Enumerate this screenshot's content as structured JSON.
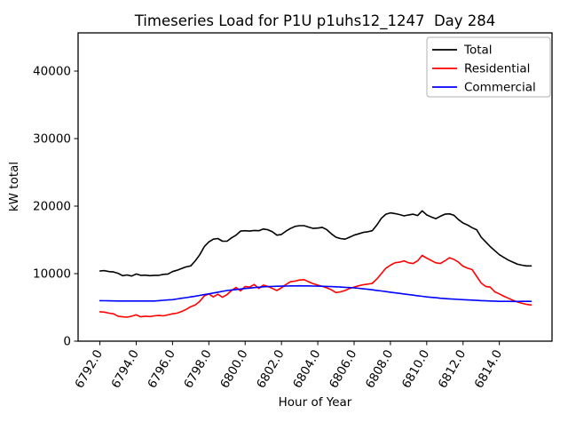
{
  "figure": {
    "title": "Timeseries Load for P1U p1uhs12_1247  Day 284",
    "xlabel": "Hour of Year",
    "ylabel": "kW total"
  },
  "colors": {
    "total": "#000000",
    "residential": "#ff0000",
    "commercial": "#0000ff",
    "frame": "#000000",
    "background": "#ffffff"
  },
  "chart_data": {
    "type": "line",
    "title": "Timeseries Load for P1U p1uhs12_1247  Day 284",
    "xlabel": "Hour of Year",
    "ylabel": "kW total",
    "grid": false,
    "legend_position": "upper right",
    "xlim": [
      6790.8,
      6816.9
    ],
    "ylim": [
      0,
      45660
    ],
    "x_ticks": [
      6792,
      6794,
      6796,
      6798,
      6800,
      6802,
      6804,
      6806,
      6808,
      6810,
      6812,
      6814
    ],
    "x_tick_labels": [
      "6792.0",
      "6794.0",
      "6796.0",
      "6798.0",
      "6800.0",
      "6802.0",
      "6804.0",
      "6806.0",
      "6808.0",
      "6810.0",
      "6812.0",
      "6814.0"
    ],
    "y_ticks": [
      0,
      10000,
      20000,
      30000,
      40000
    ],
    "y_tick_labels": [
      "0",
      "10000",
      "20000",
      "30000",
      "40000"
    ],
    "x": [
      6792,
      6792.25,
      6792.5,
      6792.75,
      6793,
      6793.25,
      6793.5,
      6793.75,
      6794,
      6794.25,
      6794.5,
      6794.75,
      6795,
      6795.25,
      6795.5,
      6795.75,
      6796,
      6796.25,
      6796.5,
      6796.75,
      6797,
      6797.25,
      6797.5,
      6797.75,
      6798,
      6798.25,
      6798.5,
      6798.75,
      6799,
      6799.25,
      6799.5,
      6799.75,
      6800,
      6800.25,
      6800.5,
      6800.75,
      6801,
      6801.25,
      6801.5,
      6801.75,
      6802,
      6802.25,
      6802.5,
      6802.75,
      6803,
      6803.25,
      6803.5,
      6803.75,
      6804,
      6804.25,
      6804.5,
      6804.75,
      6805,
      6805.25,
      6805.5,
      6805.75,
      6806,
      6806.25,
      6806.5,
      6806.75,
      6807,
      6807.25,
      6807.5,
      6807.75,
      6808,
      6808.25,
      6808.5,
      6808.75,
      6809,
      6809.25,
      6809.5,
      6809.75,
      6810,
      6810.25,
      6810.5,
      6810.75,
      6811,
      6811.25,
      6811.5,
      6811.75,
      6812,
      6812.25,
      6812.5,
      6812.75,
      6813,
      6813.25,
      6813.5,
      6813.75,
      6814,
      6814.25,
      6814.5,
      6814.75,
      6815,
      6815.25,
      6815.5,
      6815.75
    ],
    "series": [
      {
        "name": "Total",
        "color": "#000000",
        "values": [
          10400,
          10450,
          10300,
          10250,
          10050,
          9700,
          9800,
          9650,
          9950,
          9750,
          9780,
          9700,
          9750,
          9750,
          9900,
          9950,
          10300,
          10500,
          10750,
          11000,
          11150,
          11900,
          12800,
          14000,
          14700,
          15100,
          15200,
          14800,
          14800,
          15300,
          15700,
          16300,
          16350,
          16300,
          16400,
          16350,
          16600,
          16500,
          16200,
          15700,
          15800,
          16300,
          16700,
          17000,
          17100,
          17100,
          16900,
          16700,
          16750,
          16850,
          16500,
          15900,
          15400,
          15200,
          15100,
          15400,
          15700,
          15900,
          16100,
          16200,
          16350,
          17200,
          18200,
          18800,
          19000,
          18900,
          18750,
          18550,
          18700,
          18800,
          18600,
          19300,
          18700,
          18400,
          18150,
          18500,
          18800,
          18850,
          18650,
          18000,
          17500,
          17200,
          16800,
          16500,
          15400,
          14700,
          14000,
          13400,
          12800,
          12400,
          12000,
          11700,
          11400,
          11250,
          11150,
          11150
        ]
      },
      {
        "name": "Residential",
        "color": "#ff0000",
        "values": [
          4350,
          4300,
          4150,
          4050,
          3700,
          3600,
          3550,
          3700,
          3900,
          3600,
          3700,
          3650,
          3750,
          3800,
          3750,
          3900,
          4050,
          4150,
          4400,
          4700,
          5100,
          5350,
          5900,
          6700,
          7000,
          6550,
          6950,
          6500,
          6900,
          7500,
          7950,
          7450,
          8100,
          8000,
          8400,
          7800,
          8300,
          8100,
          7800,
          7500,
          7900,
          8400,
          8800,
          8900,
          9050,
          9100,
          8800,
          8500,
          8300,
          8100,
          7900,
          7600,
          7200,
          7300,
          7500,
          7800,
          8000,
          8200,
          8350,
          8450,
          8550,
          9200,
          10000,
          10800,
          11250,
          11600,
          11700,
          11900,
          11600,
          11500,
          11900,
          12700,
          12300,
          11950,
          11600,
          11500,
          11900,
          12350,
          12100,
          11700,
          11100,
          10800,
          10600,
          9600,
          8600,
          8100,
          8000,
          7300,
          7000,
          6650,
          6350,
          6050,
          5800,
          5600,
          5450,
          5350
        ]
      },
      {
        "name": "Commercial",
        "color": "#0000ff",
        "values": [
          6000,
          5990,
          5980,
          5960,
          5950,
          5950,
          5950,
          5950,
          5950,
          5950,
          5950,
          5950,
          5950,
          6000,
          6050,
          6100,
          6150,
          6250,
          6350,
          6450,
          6550,
          6660,
          6780,
          6890,
          7000,
          7130,
          7250,
          7380,
          7500,
          7580,
          7650,
          7730,
          7800,
          7860,
          7930,
          7990,
          8050,
          8080,
          8100,
          8130,
          8150,
          8160,
          8180,
          8190,
          8200,
          8190,
          8180,
          8160,
          8150,
          8130,
          8100,
          8080,
          8050,
          8010,
          7980,
          7940,
          7900,
          7830,
          7750,
          7680,
          7600,
          7510,
          7430,
          7340,
          7250,
          7160,
          7080,
          6990,
          6900,
          6810,
          6730,
          6640,
          6550,
          6490,
          6430,
          6360,
          6300,
          6260,
          6230,
          6190,
          6150,
          6110,
          6080,
          6040,
          6000,
          5980,
          5950,
          5930,
          5900,
          5890,
          5890,
          5880,
          5880,
          5890,
          5890,
          5900
        ]
      }
    ]
  }
}
